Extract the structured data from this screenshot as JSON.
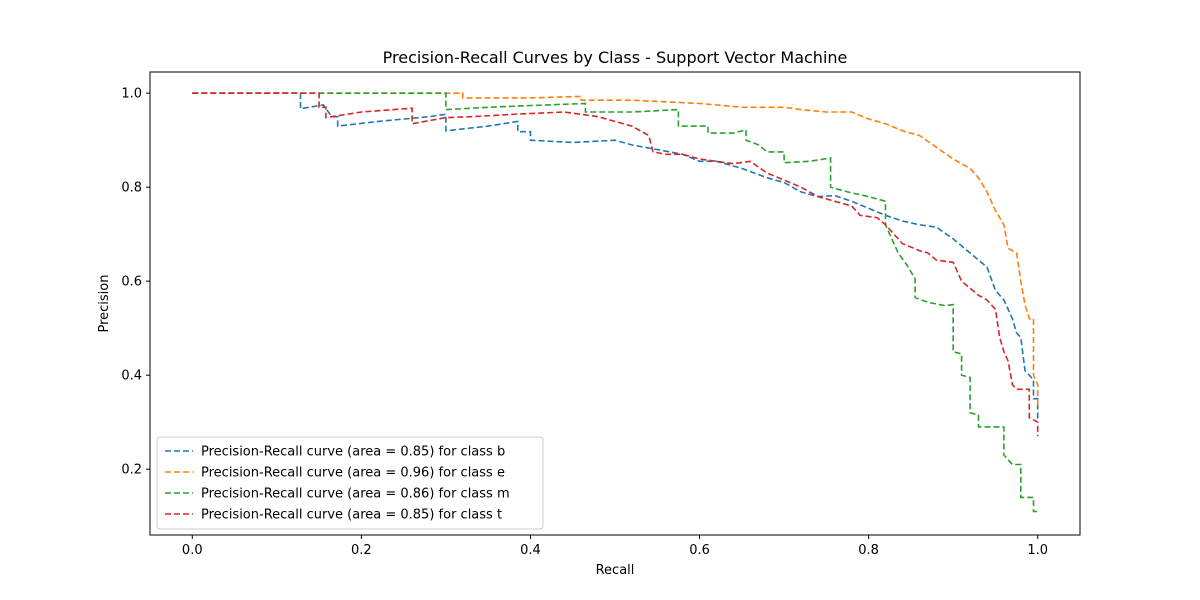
{
  "chart_data": {
    "type": "line",
    "title": "Precision-Recall Curves by Class - Support Vector Machine",
    "xlabel": "Recall",
    "ylabel": "Precision",
    "xlim": [
      -0.05,
      1.05
    ],
    "ylim": [
      0.06,
      1.045
    ],
    "xticks": [
      0.0,
      0.2,
      0.4,
      0.6,
      0.8,
      1.0
    ],
    "xtick_labels": [
      "0.0",
      "0.2",
      "0.4",
      "0.6",
      "0.8",
      "1.0"
    ],
    "yticks": [
      0.2,
      0.4,
      0.6,
      0.8,
      1.0
    ],
    "ytick_labels": [
      "0.2",
      "0.4",
      "0.6",
      "0.8",
      "1.0"
    ],
    "grid": false,
    "legend_position": "lower-left",
    "line_style": "dashed",
    "series": [
      {
        "name": "Precision-Recall curve (area = 0.85) for class b",
        "color": "#1f77b4",
        "points": [
          [
            0.0,
            1.0
          ],
          [
            0.128,
            1.0
          ],
          [
            0.128,
            0.967
          ],
          [
            0.155,
            0.975
          ],
          [
            0.165,
            0.95
          ],
          [
            0.172,
            0.95
          ],
          [
            0.172,
            0.93
          ],
          [
            0.22,
            0.94
          ],
          [
            0.28,
            0.95
          ],
          [
            0.3,
            0.955
          ],
          [
            0.3,
            0.92
          ],
          [
            0.35,
            0.93
          ],
          [
            0.385,
            0.94
          ],
          [
            0.385,
            0.918
          ],
          [
            0.4,
            0.918
          ],
          [
            0.4,
            0.9
          ],
          [
            0.45,
            0.895
          ],
          [
            0.5,
            0.9
          ],
          [
            0.52,
            0.89
          ],
          [
            0.55,
            0.88
          ],
          [
            0.58,
            0.87
          ],
          [
            0.6,
            0.855
          ],
          [
            0.62,
            0.855
          ],
          [
            0.65,
            0.84
          ],
          [
            0.68,
            0.82
          ],
          [
            0.7,
            0.81
          ],
          [
            0.72,
            0.79
          ],
          [
            0.74,
            0.78
          ],
          [
            0.76,
            0.782
          ],
          [
            0.78,
            0.77
          ],
          [
            0.8,
            0.755
          ],
          [
            0.82,
            0.74
          ],
          [
            0.84,
            0.728
          ],
          [
            0.86,
            0.72
          ],
          [
            0.88,
            0.715
          ],
          [
            0.9,
            0.69
          ],
          [
            0.92,
            0.66
          ],
          [
            0.94,
            0.63
          ],
          [
            0.95,
            0.58
          ],
          [
            0.96,
            0.56
          ],
          [
            0.97,
            0.52
          ],
          [
            0.975,
            0.49
          ],
          [
            0.98,
            0.48
          ],
          [
            0.985,
            0.41
          ],
          [
            0.99,
            0.4
          ],
          [
            0.995,
            0.39
          ],
          [
            0.995,
            0.35
          ],
          [
            1.0,
            0.35
          ],
          [
            1.0,
            0.3
          ]
        ]
      },
      {
        "name": "Precision-Recall curve (area = 0.96) for class e",
        "color": "#ff7f0e",
        "points": [
          [
            0.0,
            1.0
          ],
          [
            0.32,
            1.0
          ],
          [
            0.32,
            0.99
          ],
          [
            0.4,
            0.99
          ],
          [
            0.46,
            0.993
          ],
          [
            0.46,
            0.985
          ],
          [
            0.52,
            0.985
          ],
          [
            0.6,
            0.978
          ],
          [
            0.62,
            0.975
          ],
          [
            0.65,
            0.97
          ],
          [
            0.7,
            0.97
          ],
          [
            0.72,
            0.965
          ],
          [
            0.75,
            0.96
          ],
          [
            0.78,
            0.96
          ],
          [
            0.8,
            0.945
          ],
          [
            0.82,
            0.935
          ],
          [
            0.84,
            0.92
          ],
          [
            0.86,
            0.91
          ],
          [
            0.88,
            0.885
          ],
          [
            0.9,
            0.86
          ],
          [
            0.92,
            0.84
          ],
          [
            0.93,
            0.82
          ],
          [
            0.94,
            0.79
          ],
          [
            0.95,
            0.75
          ],
          [
            0.96,
            0.72
          ],
          [
            0.965,
            0.67
          ],
          [
            0.975,
            0.66
          ],
          [
            0.98,
            0.6
          ],
          [
            0.985,
            0.55
          ],
          [
            0.99,
            0.52
          ],
          [
            0.995,
            0.52
          ],
          [
            0.995,
            0.4
          ],
          [
            1.0,
            0.38
          ],
          [
            1.0,
            0.33
          ]
        ]
      },
      {
        "name": "Precision-Recall curve (area = 0.86) for class m",
        "color": "#2ca02c",
        "points": [
          [
            0.0,
            1.0
          ],
          [
            0.3,
            1.0
          ],
          [
            0.3,
            0.965
          ],
          [
            0.35,
            0.97
          ],
          [
            0.42,
            0.975
          ],
          [
            0.465,
            0.978
          ],
          [
            0.465,
            0.96
          ],
          [
            0.52,
            0.96
          ],
          [
            0.575,
            0.965
          ],
          [
            0.575,
            0.93
          ],
          [
            0.61,
            0.93
          ],
          [
            0.61,
            0.915
          ],
          [
            0.64,
            0.915
          ],
          [
            0.655,
            0.922
          ],
          [
            0.655,
            0.9
          ],
          [
            0.67,
            0.89
          ],
          [
            0.68,
            0.875
          ],
          [
            0.7,
            0.875
          ],
          [
            0.7,
            0.852
          ],
          [
            0.73,
            0.855
          ],
          [
            0.755,
            0.862
          ],
          [
            0.755,
            0.8
          ],
          [
            0.775,
            0.79
          ],
          [
            0.8,
            0.78
          ],
          [
            0.82,
            0.77
          ],
          [
            0.82,
            0.72
          ],
          [
            0.835,
            0.66
          ],
          [
            0.845,
            0.635
          ],
          [
            0.855,
            0.605
          ],
          [
            0.855,
            0.565
          ],
          [
            0.87,
            0.555
          ],
          [
            0.89,
            0.548
          ],
          [
            0.9,
            0.55
          ],
          [
            0.9,
            0.45
          ],
          [
            0.91,
            0.445
          ],
          [
            0.91,
            0.4
          ],
          [
            0.92,
            0.395
          ],
          [
            0.92,
            0.32
          ],
          [
            0.93,
            0.315
          ],
          [
            0.93,
            0.29
          ],
          [
            0.96,
            0.29
          ],
          [
            0.96,
            0.23
          ],
          [
            0.97,
            0.21
          ],
          [
            0.98,
            0.21
          ],
          [
            0.98,
            0.14
          ],
          [
            0.995,
            0.14
          ],
          [
            0.995,
            0.11
          ],
          [
            1.0,
            0.11
          ]
        ]
      },
      {
        "name": "Precision-Recall curve (area = 0.85) for class t",
        "color": "#d62728",
        "points": [
          [
            0.0,
            1.0
          ],
          [
            0.15,
            1.0
          ],
          [
            0.15,
            0.97
          ],
          [
            0.158,
            0.97
          ],
          [
            0.158,
            0.948
          ],
          [
            0.2,
            0.96
          ],
          [
            0.26,
            0.968
          ],
          [
            0.26,
            0.935
          ],
          [
            0.3,
            0.948
          ],
          [
            0.33,
            0.95
          ],
          [
            0.38,
            0.955
          ],
          [
            0.44,
            0.96
          ],
          [
            0.48,
            0.95
          ],
          [
            0.5,
            0.94
          ],
          [
            0.52,
            0.93
          ],
          [
            0.54,
            0.91
          ],
          [
            0.545,
            0.875
          ],
          [
            0.56,
            0.87
          ],
          [
            0.58,
            0.87
          ],
          [
            0.6,
            0.86
          ],
          [
            0.62,
            0.855
          ],
          [
            0.64,
            0.85
          ],
          [
            0.66,
            0.855
          ],
          [
            0.68,
            0.83
          ],
          [
            0.7,
            0.815
          ],
          [
            0.72,
            0.8
          ],
          [
            0.74,
            0.78
          ],
          [
            0.76,
            0.77
          ],
          [
            0.78,
            0.76
          ],
          [
            0.79,
            0.74
          ],
          [
            0.81,
            0.735
          ],
          [
            0.82,
            0.72
          ],
          [
            0.83,
            0.7
          ],
          [
            0.84,
            0.68
          ],
          [
            0.86,
            0.665
          ],
          [
            0.87,
            0.66
          ],
          [
            0.88,
            0.645
          ],
          [
            0.9,
            0.64
          ],
          [
            0.91,
            0.6
          ],
          [
            0.92,
            0.585
          ],
          [
            0.93,
            0.57
          ],
          [
            0.94,
            0.56
          ],
          [
            0.95,
            0.54
          ],
          [
            0.955,
            0.48
          ],
          [
            0.96,
            0.45
          ],
          [
            0.965,
            0.43
          ],
          [
            0.97,
            0.38
          ],
          [
            0.975,
            0.37
          ],
          [
            0.99,
            0.37
          ],
          [
            0.99,
            0.31
          ],
          [
            1.0,
            0.3
          ],
          [
            1.0,
            0.27
          ]
        ]
      }
    ]
  }
}
